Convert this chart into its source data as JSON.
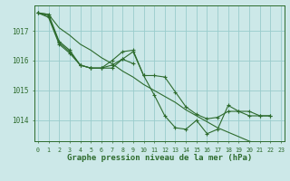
{
  "title": "Graphe pression niveau de la mer (hPa)",
  "bg_color": "#cce8e8",
  "grid_color": "#99cccc",
  "line_color": "#2d6b2d",
  "xlim": [
    -0.3,
    23.3
  ],
  "ylim": [
    1013.3,
    1017.85
  ],
  "yticks": [
    1014,
    1015,
    1016,
    1017
  ],
  "xticks": [
    0,
    1,
    2,
    3,
    4,
    5,
    6,
    7,
    8,
    9,
    10,
    11,
    12,
    13,
    14,
    15,
    16,
    17,
    18,
    19,
    20,
    21,
    22,
    23
  ],
  "series": [
    {
      "x": [
        0,
        1,
        2,
        3,
        4,
        5,
        6,
        7,
        8,
        9,
        10,
        11,
        12,
        13,
        14,
        15,
        16,
        17,
        18,
        19,
        20,
        21,
        22,
        23
      ],
      "y": [
        1017.6,
        1017.55,
        1017.1,
        1016.85,
        1016.55,
        1016.35,
        1016.1,
        1015.9,
        1015.65,
        1015.45,
        1015.2,
        1015.0,
        1014.8,
        1014.6,
        1014.35,
        1014.15,
        1013.95,
        1013.75,
        1013.6,
        1013.45,
        1013.3,
        1013.2,
        1013.1,
        1013.0
      ],
      "has_markers": false
    },
    {
      "x": [
        0,
        1,
        2,
        3,
        4,
        5,
        6,
        7,
        8,
        9
      ],
      "y": [
        1017.6,
        1017.55,
        1016.65,
        1016.35,
        1015.85,
        1015.75,
        1015.75,
        1015.75,
        1016.05,
        1015.9
      ],
      "has_markers": true
    },
    {
      "x": [
        0,
        1,
        2,
        3,
        4,
        5,
        6,
        7,
        8,
        9,
        10,
        11,
        12,
        13,
        14,
        15,
        16,
        17,
        18,
        19,
        20,
        21,
        22
      ],
      "y": [
        1017.6,
        1017.5,
        1016.6,
        1016.3,
        1015.85,
        1015.75,
        1015.75,
        1016.0,
        1016.3,
        1016.35,
        1015.5,
        1014.85,
        1014.15,
        1013.75,
        1013.7,
        1014.0,
        1013.55,
        1013.7,
        1014.5,
        1014.3,
        1014.3,
        1014.15,
        1014.15
      ],
      "has_markers": true
    },
    {
      "x": [
        0,
        1,
        2,
        3,
        4,
        5,
        6,
        7,
        8,
        9,
        10,
        11,
        12,
        13,
        14,
        15,
        16,
        17,
        18,
        19,
        20,
        21,
        22
      ],
      "y": [
        1017.6,
        1017.45,
        1016.55,
        1016.25,
        1015.85,
        1015.75,
        1015.75,
        1015.85,
        1016.05,
        1016.3,
        1015.5,
        1015.5,
        1015.45,
        1014.95,
        1014.45,
        1014.2,
        1014.05,
        1014.1,
        1014.3,
        1014.3,
        1014.15,
        1014.15,
        1014.15
      ],
      "has_markers": true
    }
  ],
  "title_fontsize": 6.5,
  "tick_fontsize": 5.5,
  "xtick_fontsize": 4.8
}
